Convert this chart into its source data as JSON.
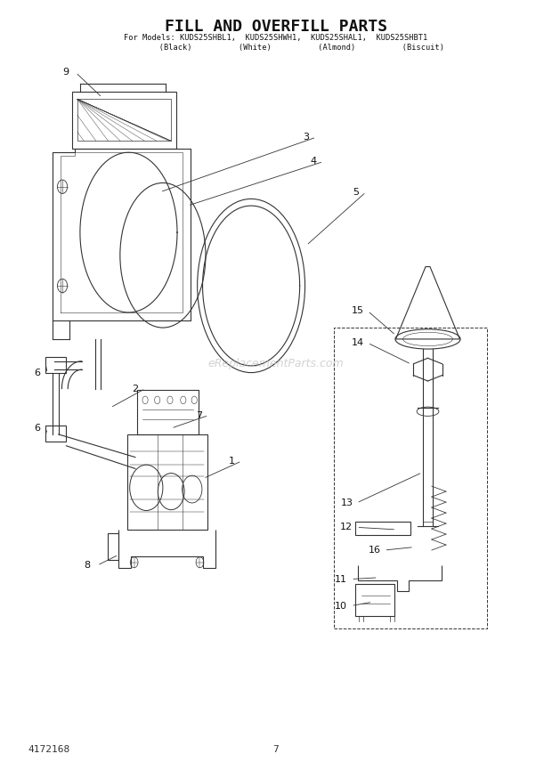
{
  "title": "FILL AND OVERFILL PARTS",
  "subtitle_line1": "For Models: KUDS25SHBL1,  KUDS25SHWH1,  KUDS25SHAL1,  KUDS25SHBT1",
  "subtitle_line2": "           (Black)          (White)          (Almond)          (Biscuit)",
  "page_number": "7",
  "doc_number": "4172168",
  "background_color": "#ffffff",
  "line_color": "#333333",
  "watermark_text": "eReplacementParts.com"
}
